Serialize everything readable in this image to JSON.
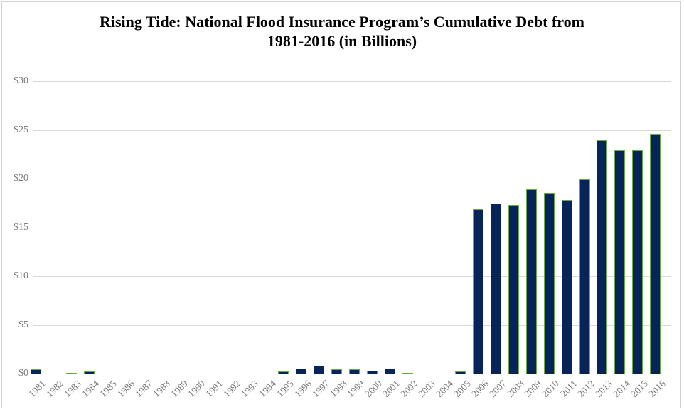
{
  "chart_data": {
    "type": "bar",
    "title": "Rising Tide: National Flood Insurance Program’s Cumulative Debt from 1981-2016 (in Billions)",
    "title_lines": [
      "Rising Tide: National Flood Insurance Program’s Cumulative Debt from",
      "1981-2016 (in Billions)"
    ],
    "categories": [
      "1981",
      "1982",
      "1983",
      "1984",
      "1985",
      "1986",
      "1987",
      "1988",
      "1989",
      "1990",
      "1991",
      "1992",
      "1993",
      "1994",
      "1995",
      "1996",
      "1997",
      "1998",
      "1999",
      "2000",
      "2001",
      "2002",
      "2003",
      "2004",
      "2005",
      "2006",
      "2007",
      "2008",
      "2009",
      "2010",
      "2011",
      "2012",
      "2013",
      "2014",
      "2015",
      "2016"
    ],
    "values": [
      0.5,
      0,
      0.05,
      0.3,
      0,
      0,
      0,
      0,
      0,
      0,
      0,
      0,
      0,
      0,
      0.3,
      0.6,
      0.9,
      0.5,
      0.5,
      0.35,
      0.6,
      0.05,
      0,
      0,
      0.3,
      16.9,
      17.5,
      17.4,
      19.0,
      18.6,
      17.9,
      20.0,
      24.0,
      23.0,
      23.0,
      24.6
    ],
    "y_ticks": [
      "$0",
      "$5",
      "$10",
      "$15",
      "$20",
      "$25",
      "$30"
    ],
    "y_tick_step": 5,
    "ylim": [
      0,
      30
    ],
    "xlabel": "",
    "ylabel": "",
    "grid": "horizontal",
    "legend": "none",
    "colors": {
      "bar_fill": "#062459",
      "bar_border": "#6aaa45",
      "gridline": "#d9d9d9",
      "axis_line": "#bfbfbf",
      "tick_label": "#7a7a7a",
      "title_text": "#000000",
      "frame_border": "#d2d2d2",
      "background": "#ffffff"
    }
  }
}
